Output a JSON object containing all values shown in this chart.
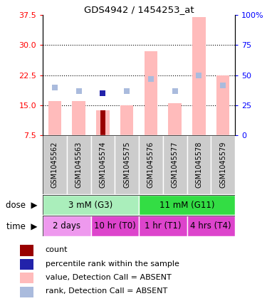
{
  "title": "GDS4942 / 1454253_at",
  "samples": [
    "GSM1045562",
    "GSM1045563",
    "GSM1045574",
    "GSM1045575",
    "GSM1045576",
    "GSM1045577",
    "GSM1045578",
    "GSM1045579"
  ],
  "value_bars": [
    16.0,
    16.0,
    13.8,
    15.0,
    28.5,
    15.5,
    37.0,
    22.5
  ],
  "rank_squares_left": [
    19.5,
    18.5,
    18.0,
    18.5,
    21.5,
    18.5,
    22.5,
    20.0
  ],
  "count_bar_index": 2,
  "count_bar_value": 13.8,
  "count_bar_color": "#990000",
  "blue_square_index": 2,
  "blue_square_value": 18.0,
  "value_bar_color": "#ffbbbb",
  "rank_square_color": "#aabbdd",
  "rank_square_blue_color": "#2222aa",
  "ylim_left": [
    7.5,
    37.5
  ],
  "ylim_right": [
    0,
    100
  ],
  "yticks_left": [
    7.5,
    15.0,
    22.5,
    30.0,
    37.5
  ],
  "yticks_right": [
    0,
    25,
    50,
    75,
    100
  ],
  "ytick_labels_right": [
    "0",
    "25",
    "50",
    "75",
    "100%"
  ],
  "dose_groups": [
    {
      "label": "3 mM (G3)",
      "start": 0,
      "end": 4,
      "color": "#aaeebb"
    },
    {
      "label": "11 mM (G11)",
      "start": 4,
      "end": 8,
      "color": "#33dd44"
    }
  ],
  "time_groups": [
    {
      "label": "2 days",
      "start": 0,
      "end": 2,
      "color": "#ee99ee"
    },
    {
      "label": "10 hr (T0)",
      "start": 2,
      "end": 4,
      "color": "#dd44cc"
    },
    {
      "label": "1 hr (T1)",
      "start": 4,
      "end": 6,
      "color": "#dd44cc"
    },
    {
      "label": "4 hrs (T4)",
      "start": 6,
      "end": 8,
      "color": "#dd44cc"
    }
  ],
  "legend_items": [
    {
      "label": "count",
      "color": "#990000"
    },
    {
      "label": "percentile rank within the sample",
      "color": "#2222aa"
    },
    {
      "label": "value, Detection Call = ABSENT",
      "color": "#ffbbbb"
    },
    {
      "label": "rank, Detection Call = ABSENT",
      "color": "#aabbdd"
    }
  ],
  "sample_box_color": "#cccccc",
  "plot_bg_color": "#ffffff",
  "bar_width": 0.55
}
